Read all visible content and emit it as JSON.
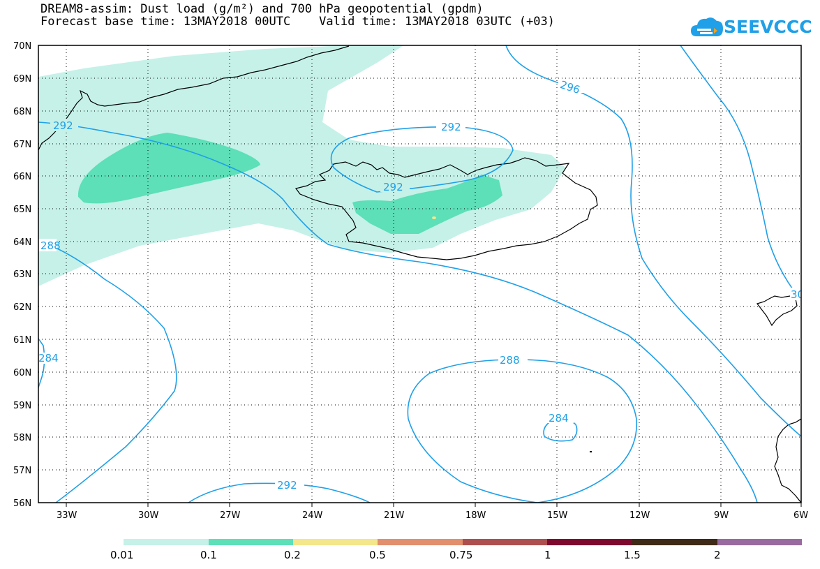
{
  "title_line1": "DREAM8-assim: Dust load (g/m²) and 700 hPa geopotential (gpdm)",
  "title_line2": "Forecast base time: 13MAY2018 00UTC    Valid time: 13MAY2018 03UTC (+03)",
  "logo_text": "SEEVCCC",
  "colors": {
    "contour": "#1fa0e8",
    "bins": [
      "#c5f1e8",
      "#5ddfb7",
      "#f4e68a",
      "#e28f6d",
      "#ad4f4f",
      "#7d0a2e",
      "#3e2a16",
      "#986a9f"
    ]
  },
  "lat_labels": [
    "70N",
    "69N",
    "68N",
    "67N",
    "66N",
    "65N",
    "64N",
    "63N",
    "62N",
    "61N",
    "60N",
    "59N",
    "58N",
    "57N",
    "56N"
  ],
  "lon_labels": [
    "33W",
    "30W",
    "27W",
    "24W",
    "21W",
    "18W",
    "15W",
    "12W",
    "9W",
    "6W"
  ],
  "colorbar_labels": [
    "0.01",
    "0.1",
    "0.2",
    "0.5",
    "0.75",
    "1",
    "1.5",
    "2"
  ],
  "contour_labels": [
    "292",
    "292",
    "292",
    "296",
    "288",
    "288",
    "284",
    "284",
    "292",
    "30"
  ]
}
